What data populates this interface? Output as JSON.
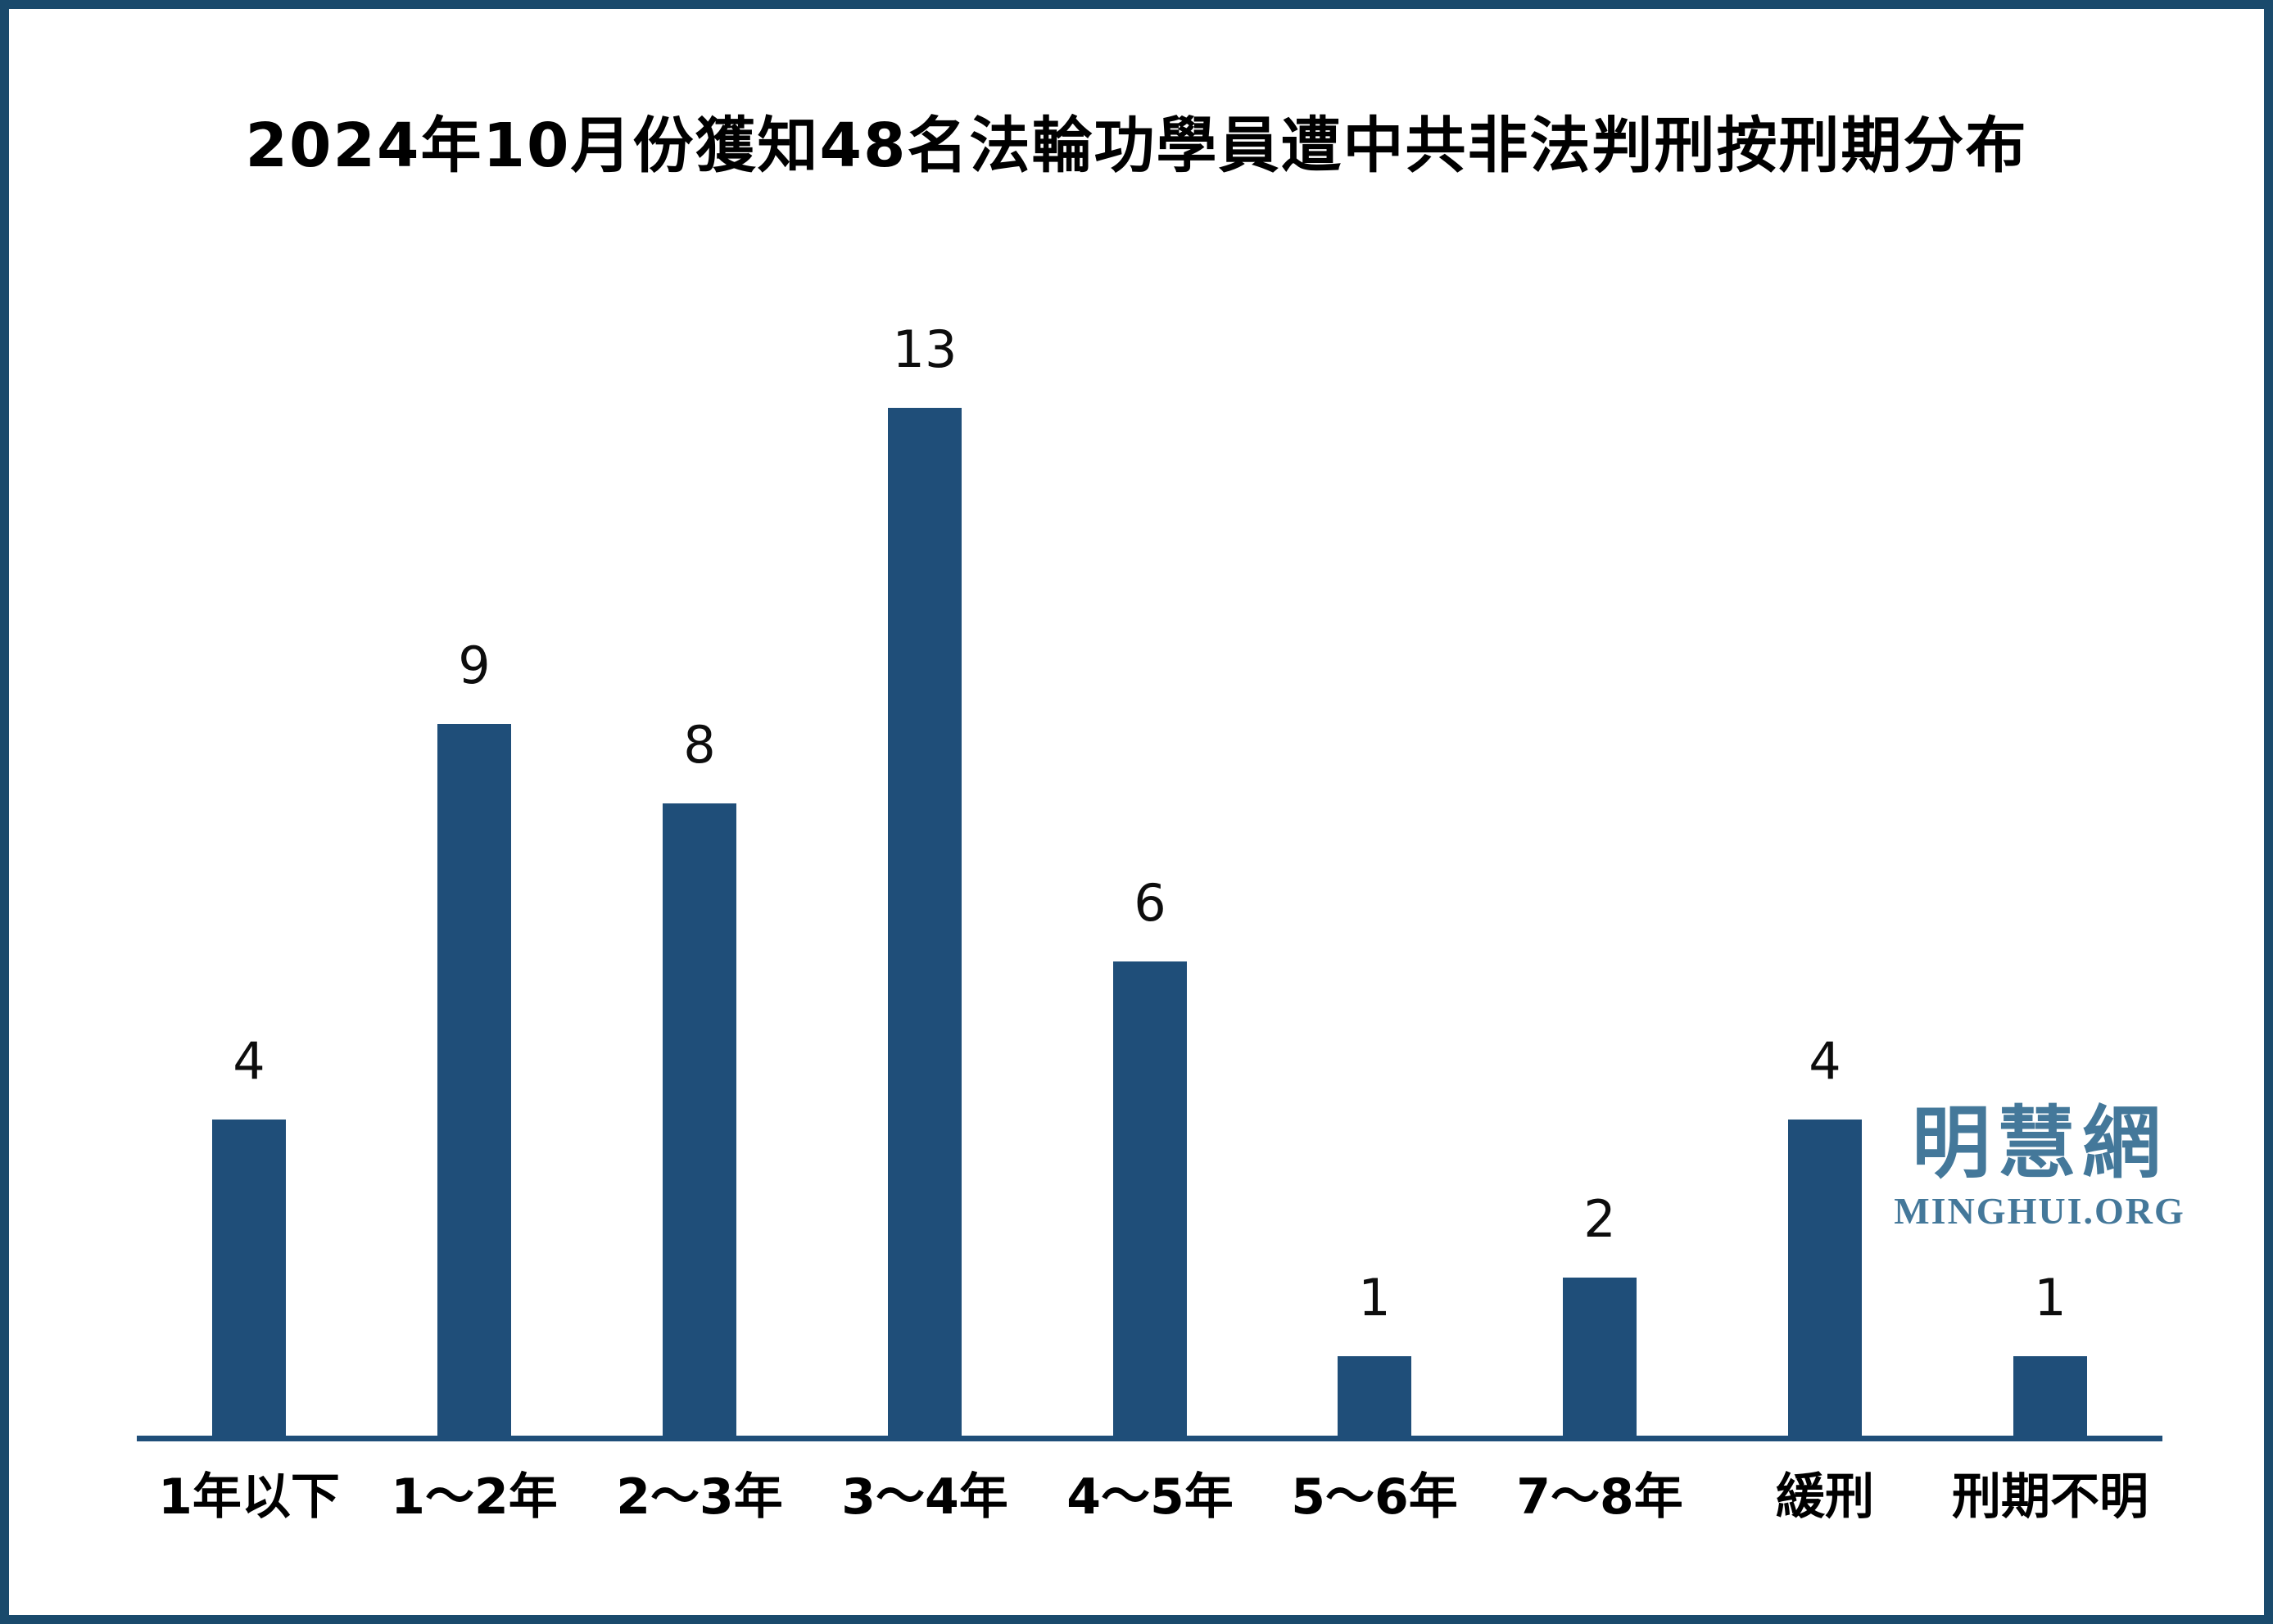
{
  "chart_data": {
    "type": "bar",
    "title": "2024年10月份獲知48名法輪功學員遭中共非法判刑按刑期分布",
    "categories": [
      "1年以下",
      "1～2年",
      "2～3年",
      "3～4年",
      "4～5年",
      "5～6年",
      "7～8年",
      "緩刑",
      "刑期不明"
    ],
    "values": [
      4,
      9,
      8,
      13,
      6,
      1,
      2,
      4,
      1
    ],
    "total_mentioned_in_title": 48,
    "bar_value_labels_shown": true,
    "xlabel": "",
    "ylabel": "",
    "ylim": [
      0,
      13
    ],
    "grid": false,
    "legend": "none",
    "bar_color": "#1F4E79",
    "axis_color": "#1F4E79"
  },
  "watermark": {
    "cjk": "明慧網",
    "latin": "MINGHUI.ORG",
    "color": "#44789A"
  },
  "frame": {
    "border_color": "#1A4A6C",
    "background": "#FFFFFF"
  }
}
